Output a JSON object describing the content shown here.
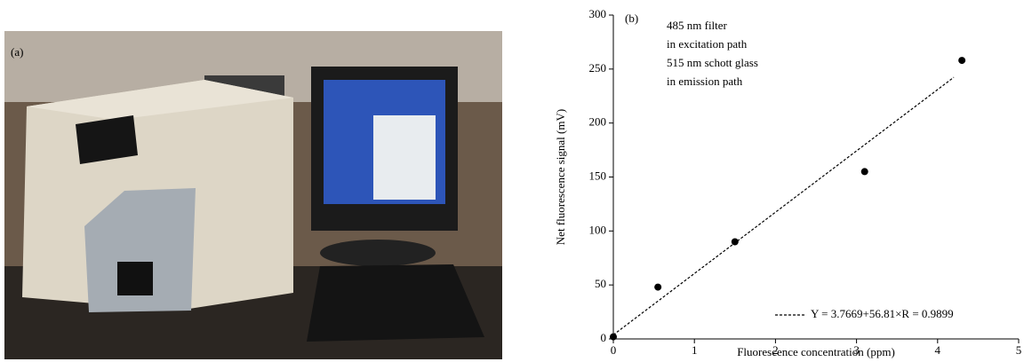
{
  "panel_a": {
    "label": "(a)"
  },
  "chart_data": {
    "type": "scatter",
    "label": "(b)",
    "annotations": [
      "485 nm filter",
      "in excitation path",
      "515 nm schott glass",
      "in emission path"
    ],
    "x_label": "Fluorescence concentration (ppm)",
    "y_label": "Net fluorescence signal (mV)",
    "x": [
      0,
      0.55,
      1.5,
      3.1,
      4.3
    ],
    "values": [
      2,
      48,
      90,
      155,
      258
    ],
    "color": "#000000",
    "fit": {
      "intercept": 3.7669,
      "slope": 56.81,
      "label": "Y = 3.7669+56.81×R = 0.9899"
    },
    "xlim": [
      0,
      5
    ],
    "xticks": [
      0,
      1,
      2,
      3,
      4,
      5
    ],
    "ylim": [
      0,
      300
    ],
    "yticks": [
      0,
      50,
      100,
      150,
      200,
      250,
      300
    ]
  }
}
